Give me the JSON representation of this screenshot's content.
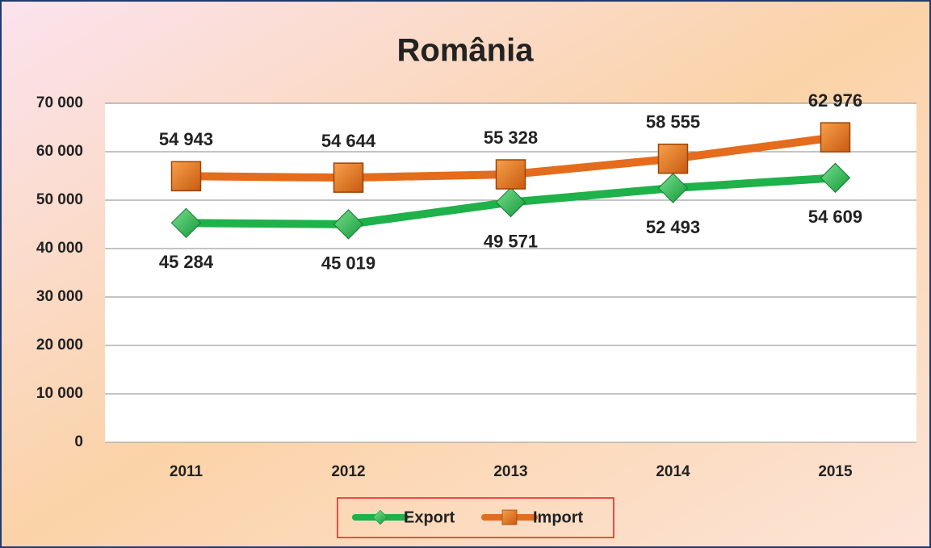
{
  "chart_data": {
    "type": "line",
    "title": "România",
    "categories": [
      "2011",
      "2012",
      "2013",
      "2014",
      "2015"
    ],
    "series": [
      {
        "name": "Export",
        "color": "#1fb14a",
        "values": [
          45284,
          45019,
          49571,
          52493,
          54609
        ],
        "value_labels": [
          "45 284",
          "45 019",
          "49 571",
          "52 493",
          "54 609"
        ]
      },
      {
        "name": "Import",
        "color": "#e46c1c",
        "values": [
          54943,
          54644,
          55328,
          58555,
          62976
        ],
        "value_labels": [
          "54 943",
          "54 644",
          "55 328",
          "58 555",
          "62 976"
        ]
      }
    ],
    "ylim": [
      0,
      70000
    ],
    "yticks": [
      0,
      {
        "value": 10000,
        "label": "10 000"
      },
      {
        "value": 20000,
        "label": "20 000"
      },
      {
        "value": 30000,
        "label": "30 000"
      },
      {
        "value": 40000,
        "label": "40 000"
      },
      {
        "value": 50000,
        "label": "50 000"
      },
      {
        "value": 60000,
        "label": "60 000"
      },
      {
        "value": 70000,
        "label": "70 000"
      }
    ],
    "grid": true,
    "legend": "bottom"
  }
}
